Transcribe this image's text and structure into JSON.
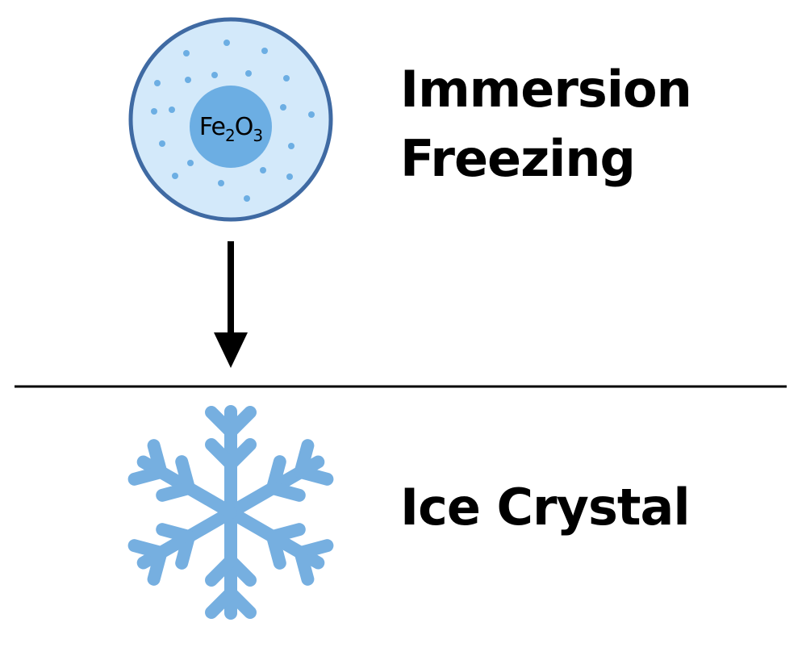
{
  "process": {
    "title_line1": "Immersion",
    "title_line2": "Freezing"
  },
  "particle": {
    "formula_base": "Fe",
    "formula_sub1": "2",
    "formula_mid": "O",
    "formula_sub2": "3",
    "icon": "droplet-with-iron-oxide-core"
  },
  "result": {
    "label": "Ice Crystal",
    "icon": "snowflake-icon"
  },
  "colors": {
    "droplet_fill": "#d3e9fa",
    "droplet_border": "#3f6aa3",
    "core_fill": "#6caee3",
    "dots": "#6caee3",
    "snowflake": "#76afe0",
    "arrow": "#000000",
    "divider": "#000000",
    "text": "#000000"
  }
}
